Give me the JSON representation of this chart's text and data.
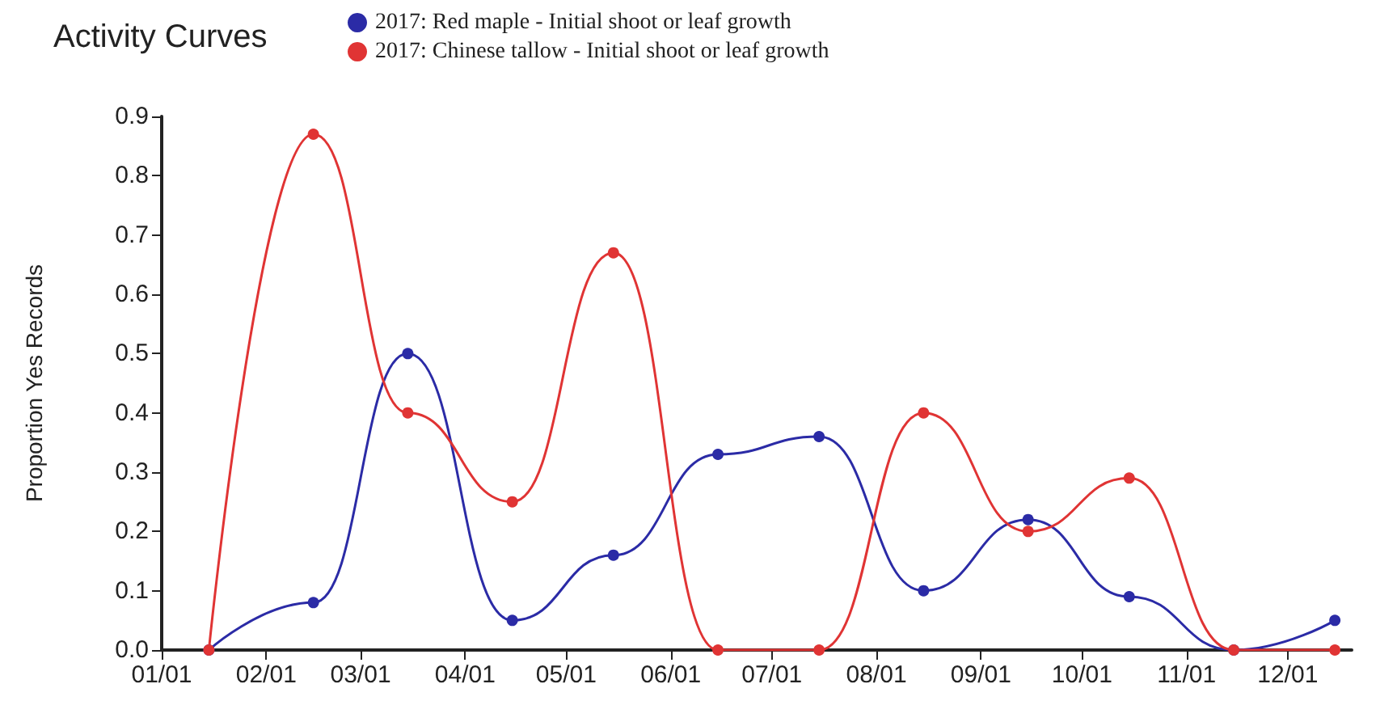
{
  "chart_data": {
    "type": "line",
    "title": "Activity Curves",
    "ylabel": "Proportion Yes Records",
    "x": [
      "--01-15",
      "--02-15",
      "--03-15",
      "--04-15",
      "--05-15",
      "--06-15",
      "--07-15",
      "--08-15",
      "--09-15",
      "--10-15",
      "--11-15",
      "--12-15"
    ],
    "series": [
      {
        "name": "2017: Red maple - Initial shoot or leaf growth",
        "color": "#2b2ba6",
        "values": [
          0,
          0.08,
          0.5,
          0.05,
          0.16,
          0.33,
          0.36,
          0.1,
          0.22,
          0.09,
          0,
          0.05
        ]
      },
      {
        "name": "2017: Chinese tallow - Initial shoot or leaf growth",
        "color": "#e03434",
        "values": [
          0,
          0.87,
          0.4,
          0.25,
          0.67,
          0,
          0,
          0.4,
          0.2,
          0.29,
          0,
          0
        ]
      }
    ],
    "xlim": [
      "--01-01",
      "--12-20"
    ],
    "xticks": [
      {
        "value": "--01-01",
        "label": "01/01"
      },
      {
        "value": "--02-01",
        "label": "02/01"
      },
      {
        "value": "--03-01",
        "label": "03/01"
      },
      {
        "value": "--04-01",
        "label": "04/01"
      },
      {
        "value": "--05-01",
        "label": "05/01"
      },
      {
        "value": "--06-01",
        "label": "06/01"
      },
      {
        "value": "--07-01",
        "label": "07/01"
      },
      {
        "value": "--08-01",
        "label": "08/01"
      },
      {
        "value": "--09-01",
        "label": "09/01"
      },
      {
        "value": "--10-01",
        "label": "10/01"
      },
      {
        "value": "--11-01",
        "label": "11/01"
      },
      {
        "value": "--12-01",
        "label": "12/01"
      }
    ],
    "ylim": [
      0,
      0.9
    ],
    "yticks": [
      {
        "value": 0,
        "label": "0.0"
      },
      0.1,
      0.2,
      0.3,
      0.4,
      0.5,
      0.6,
      0.7,
      0.8,
      0.9
    ],
    "grid": false,
    "legend": "top",
    "marker": "circle",
    "line_style": "solid"
  }
}
